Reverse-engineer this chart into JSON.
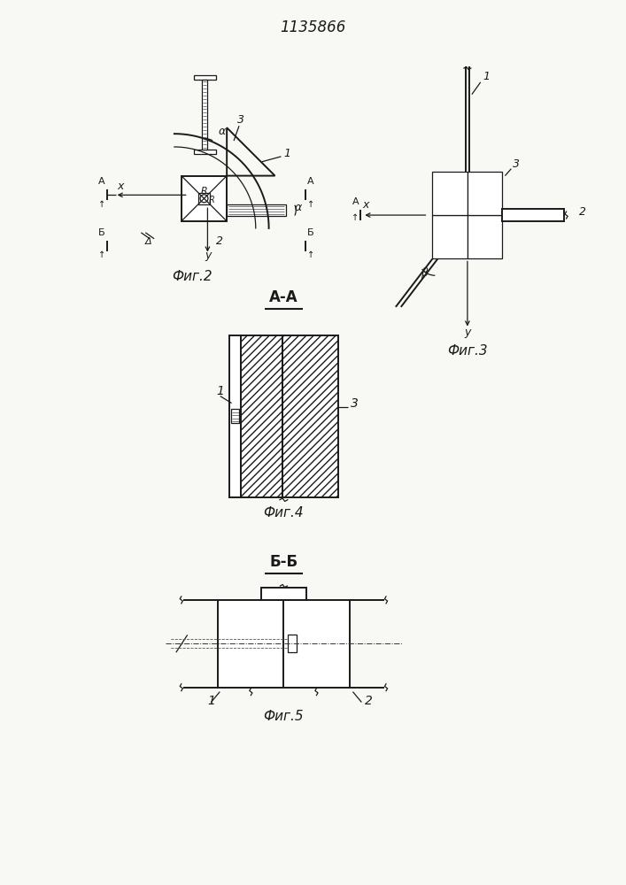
{
  "title": "1135866",
  "bg_color": "#f8f8f4",
  "line_color": "#1a1a1a",
  "fig2_label": "Фиг.2",
  "fig3_label": "Фиг.3",
  "fig4_label": "Фиг.4",
  "fig5_label": "Фиг.5",
  "section_aa": "А-А",
  "section_bb": "Б-Б"
}
